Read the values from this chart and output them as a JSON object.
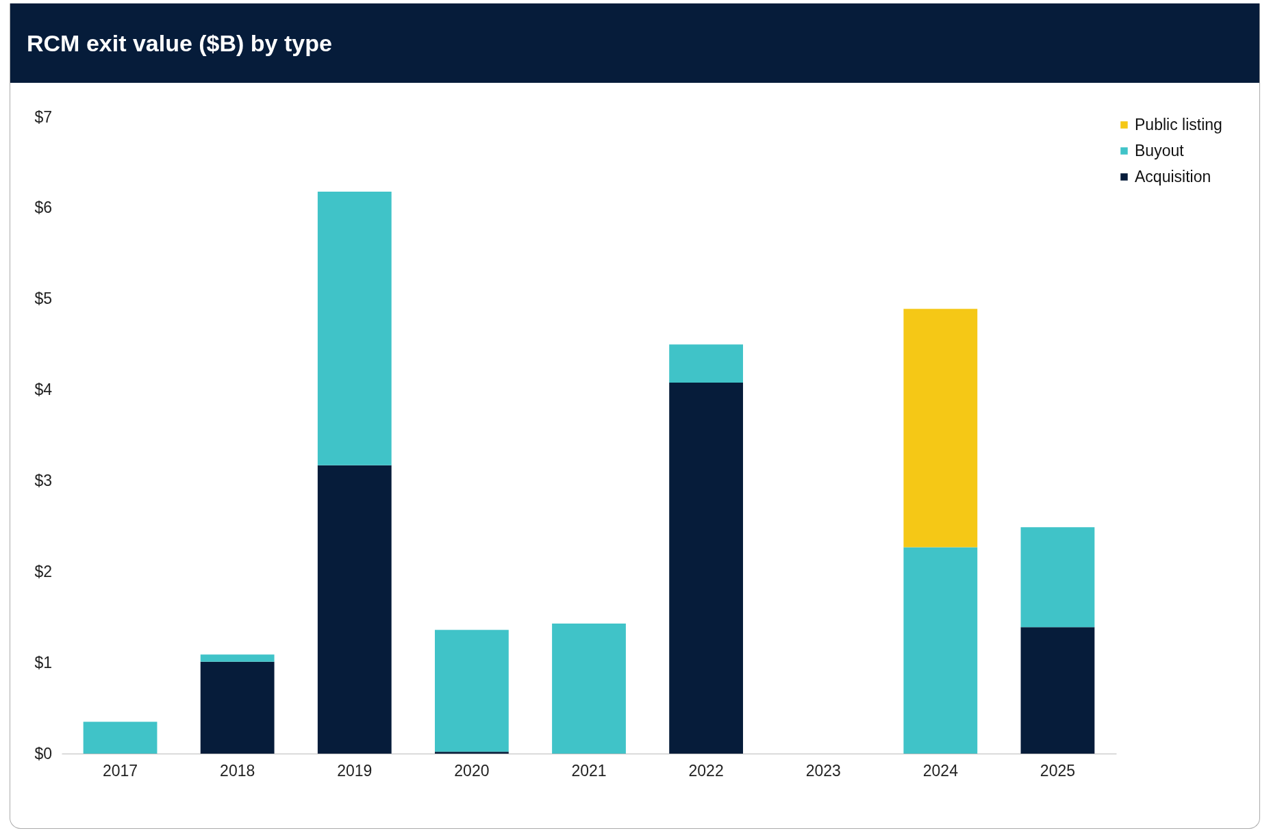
{
  "chart_data": {
    "type": "bar",
    "title": "RCM exit value ($B) by type",
    "stacked": true,
    "legend": "top right",
    "grid": false,
    "categories": [
      "2017",
      "2018",
      "2019",
      "2020",
      "2021",
      "2022",
      "2023",
      "2024",
      "2025"
    ],
    "series": [
      {
        "name": "Acquisition",
        "color": "#061c3a",
        "values": [
          0,
          1.01,
          3.17,
          0.02,
          0,
          4.08,
          0,
          0,
          1.39
        ]
      },
      {
        "name": "Buyout",
        "color": "#40c3c8",
        "values": [
          0.35,
          0.08,
          3.01,
          1.34,
          1.43,
          0.42,
          0,
          2.27,
          1.1
        ]
      },
      {
        "name": "Public listing",
        "color": "#f5c816",
        "values": [
          0,
          0,
          0,
          0,
          0,
          0,
          0,
          2.62,
          0
        ]
      }
    ],
    "ylim": [
      0,
      7
    ],
    "yticks": [
      {
        "value": 0,
        "label": "$0"
      },
      {
        "value": 1,
        "label": "$1"
      },
      {
        "value": 2,
        "label": "$2"
      },
      {
        "value": 3,
        "label": "$3"
      },
      {
        "value": 4,
        "label": "$4"
      },
      {
        "value": 5,
        "label": "$5"
      },
      {
        "value": 6,
        "label": "$6"
      },
      {
        "value": 7,
        "label": "$7"
      }
    ]
  }
}
